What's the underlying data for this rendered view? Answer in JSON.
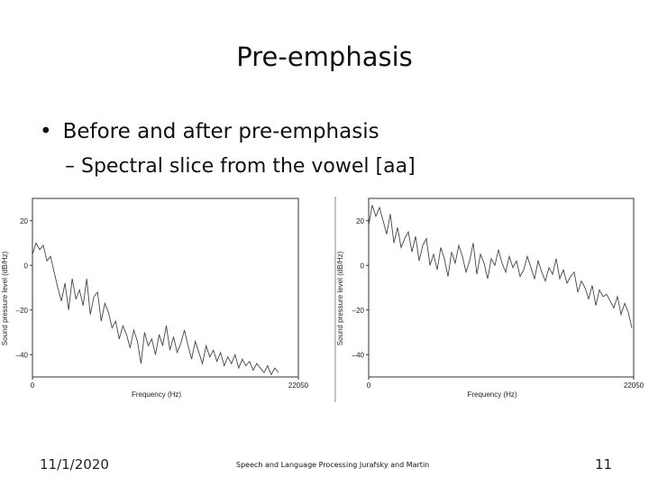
{
  "slide": {
    "title": "Pre-emphasis",
    "bullet": "Before and after pre-emphasis",
    "subbullet_dash": "–",
    "subbullet": "Spectral slice from the vowel [aa]",
    "footer_date": "11/1/2020",
    "footer_center": "Speech and Language Processing Jurafsky and Martin",
    "page_number": "11"
  },
  "chart_data": [
    {
      "type": "line",
      "xlabel": "Frequency (Hz)",
      "ylabel": "Sound pressure level (dB/Hz)",
      "xlim": [
        0,
        22050
      ],
      "ylim": [
        -50,
        30
      ],
      "x_ticks": [
        "0",
        "22050"
      ],
      "y_ticks": [
        "20",
        "0",
        "–20",
        "–40"
      ],
      "y_tick_values": [
        20,
        0,
        -20,
        -40
      ],
      "grid": false,
      "series": [
        {
          "x": [
            0,
            300,
            600,
            900,
            1200,
            1500,
            1800,
            2100,
            2400,
            2700,
            3000,
            3300,
            3600,
            3900,
            4200,
            4500,
            4800,
            5100,
            5400,
            5700,
            6000,
            6300,
            6600,
            6900,
            7200,
            7500,
            7800,
            8100,
            8400,
            8700,
            9000,
            9300,
            9600,
            9900,
            10200,
            10500,
            10800,
            11100,
            11400,
            11700,
            12000,
            12300,
            12600,
            12900,
            13200,
            13500,
            13800,
            14100,
            14400,
            14700,
            15000,
            15300,
            15600,
            15900,
            16200,
            16500,
            16800,
            17100,
            17400,
            17700,
            18000,
            18300,
            18600,
            18900,
            19200,
            19500,
            19800,
            20100,
            20400
          ],
          "y": [
            5,
            10,
            7,
            9,
            2,
            4,
            -3,
            -10,
            -16,
            -8,
            -20,
            -6,
            -15,
            -11,
            -18,
            -6,
            -22,
            -14,
            -12,
            -25,
            -17,
            -21,
            -28,
            -25,
            -33,
            -27,
            -31,
            -37,
            -29,
            -34,
            -44,
            -30,
            -36,
            -33,
            -40,
            -31,
            -36,
            -27,
            -38,
            -32,
            -39,
            -35,
            -29,
            -36,
            -42,
            -34,
            -39,
            -44,
            -36,
            -41,
            -38,
            -43,
            -39,
            -45,
            -41,
            -44,
            -40,
            -46,
            -42,
            -45,
            -43,
            -47,
            -44,
            -46,
            -48,
            -45,
            -49,
            -46,
            -48
          ]
        }
      ]
    },
    {
      "type": "line",
      "xlabel": "Frequency (Hz)",
      "ylabel": "Sound pressure level (dB/Hz)",
      "xlim": [
        0,
        22050
      ],
      "ylim": [
        -50,
        30
      ],
      "x_ticks": [
        "0",
        "22050"
      ],
      "y_ticks": [
        "20",
        "0",
        "–20",
        "–40"
      ],
      "y_tick_values": [
        20,
        0,
        -20,
        -40
      ],
      "grid": false,
      "series": [
        {
          "x": [
            0,
            300,
            600,
            900,
            1200,
            1500,
            1800,
            2100,
            2400,
            2700,
            3000,
            3300,
            3600,
            3900,
            4200,
            4500,
            4800,
            5100,
            5400,
            5700,
            6000,
            6300,
            6600,
            6900,
            7200,
            7500,
            7800,
            8100,
            8400,
            8700,
            9000,
            9300,
            9600,
            9900,
            10200,
            10500,
            10800,
            11100,
            11400,
            11700,
            12000,
            12300,
            12600,
            12900,
            13200,
            13500,
            13800,
            14100,
            14400,
            14700,
            15000,
            15300,
            15600,
            15900,
            16200,
            16500,
            16800,
            17100,
            17400,
            17700,
            18000,
            18300,
            18600,
            18900,
            19200,
            19500,
            19800,
            20100,
            20400,
            20700,
            21000,
            21300,
            21600,
            21900
          ],
          "y": [
            18,
            27,
            22,
            26,
            20,
            14,
            23,
            10,
            17,
            8,
            12,
            15,
            6,
            13,
            2,
            9,
            12,
            0,
            5,
            -2,
            8,
            3,
            -5,
            6,
            1,
            9,
            4,
            -3,
            2,
            10,
            -4,
            5,
            1,
            -6,
            3,
            0,
            7,
            1,
            -3,
            4,
            -1,
            2,
            -5,
            -2,
            4,
            -1,
            -6,
            2,
            -3,
            -7,
            -1,
            -4,
            3,
            -6,
            -2,
            -8,
            -5,
            -3,
            -12,
            -7,
            -10,
            -15,
            -9,
            -18,
            -11,
            -14,
            -13,
            -16,
            -19,
            -14,
            -22,
            -17,
            -21,
            -28
          ]
        }
      ]
    }
  ]
}
